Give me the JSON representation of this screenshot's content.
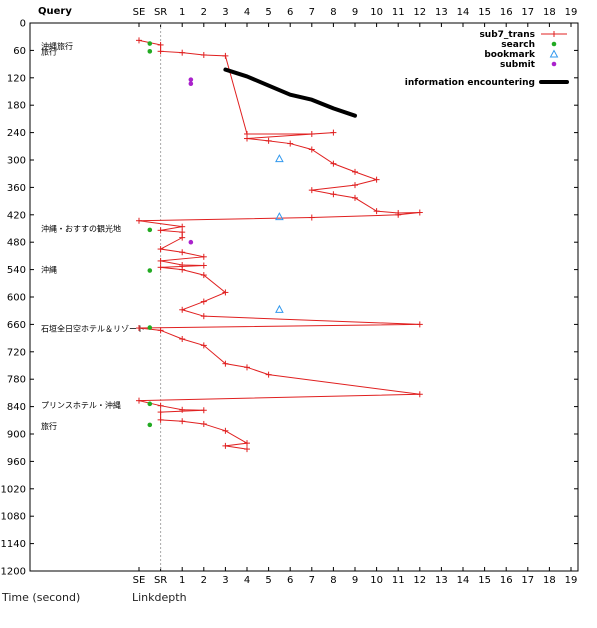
{
  "chart_data": {
    "type": "line",
    "title": "",
    "corner_label": "Query",
    "xlabel": "Linkdepth",
    "ylabel": "Time (second)",
    "x_ticks": [
      "SE",
      "SR",
      "1",
      "2",
      "3",
      "4",
      "5",
      "6",
      "7",
      "8",
      "9",
      "10",
      "11",
      "12",
      "13",
      "14",
      "15",
      "16",
      "17",
      "18",
      "19"
    ],
    "x_tick_values": [
      -1,
      0,
      1,
      2,
      3,
      4,
      5,
      6,
      7,
      8,
      9,
      10,
      11,
      12,
      13,
      14,
      15,
      16,
      17,
      18,
      19
    ],
    "xlim": [
      -1,
      19
    ],
    "y_ticks": [
      0,
      60,
      120,
      180,
      240,
      300,
      360,
      420,
      480,
      540,
      600,
      660,
      720,
      780,
      840,
      900,
      960,
      1020,
      1080,
      1140,
      1200
    ],
    "ylim": [
      0,
      1200
    ],
    "y_inverted": true,
    "grid": false,
    "sr_reference_line": 0,
    "legend_position": "top-right",
    "query_labels": [
      {
        "y": 50,
        "text": "沖縄旅行"
      },
      {
        "y": 62,
        "text": "旅行"
      },
      {
        "y": 450,
        "text": "沖縄・おすすの観光地"
      },
      {
        "y": 540,
        "text": "沖縄"
      },
      {
        "y": 669,
        "text": "石垣全日空ホテル＆リゾート"
      },
      {
        "y": 836,
        "text": "プリンスホテル・沖縄"
      },
      {
        "y": 882,
        "text": "旅行"
      }
    ],
    "series": [
      {
        "name": "sub7_trans",
        "style": "line-plus",
        "color": "#e02020",
        "points": [
          [
            -1,
            38
          ],
          [
            0,
            48
          ],
          [
            0,
            62
          ],
          [
            1,
            65
          ],
          [
            2,
            70
          ],
          [
            3,
            72
          ],
          [
            4,
            243
          ],
          [
            7,
            243
          ],
          [
            8,
            240
          ],
          [
            4,
            253
          ],
          [
            5,
            258
          ],
          [
            6,
            264
          ],
          [
            7,
            277
          ],
          [
            8,
            308
          ],
          [
            9,
            326
          ],
          [
            10,
            343
          ],
          [
            9,
            355
          ],
          [
            7,
            366
          ],
          [
            8,
            375
          ],
          [
            9,
            383
          ],
          [
            10,
            412
          ],
          [
            11,
            416
          ],
          [
            12,
            415
          ],
          [
            11,
            420
          ],
          [
            7,
            426
          ],
          [
            -1,
            433
          ],
          [
            1,
            446
          ],
          [
            0,
            454
          ],
          [
            1,
            458
          ],
          [
            1,
            470
          ],
          [
            0,
            495
          ],
          [
            1,
            502
          ],
          [
            2,
            512
          ],
          [
            0,
            521
          ],
          [
            1,
            530
          ],
          [
            2,
            531
          ],
          [
            0,
            535
          ],
          [
            1,
            540
          ],
          [
            2,
            552
          ],
          [
            3,
            590
          ],
          [
            2,
            610
          ],
          [
            1,
            628
          ],
          [
            2,
            642
          ],
          [
            12,
            660
          ],
          [
            -1,
            668
          ],
          [
            0,
            673
          ],
          [
            1,
            692
          ],
          [
            2,
            706
          ],
          [
            3,
            746
          ],
          [
            4,
            754
          ],
          [
            5,
            770
          ],
          [
            12,
            813
          ],
          [
            -1,
            827
          ],
          [
            0,
            838
          ],
          [
            1,
            847
          ],
          [
            2,
            848
          ],
          [
            0,
            852
          ],
          [
            0,
            869
          ],
          [
            1,
            872
          ],
          [
            2,
            878
          ],
          [
            3,
            893
          ],
          [
            4,
            920
          ],
          [
            3,
            926
          ],
          [
            4,
            933
          ]
        ]
      },
      {
        "name": "search",
        "style": "dot",
        "color": "#22aa22",
        "points": [
          [
            -0.5,
            45
          ],
          [
            -0.5,
            62
          ],
          [
            -0.5,
            453
          ],
          [
            -0.5,
            542
          ],
          [
            -0.5,
            667
          ],
          [
            -0.5,
            834
          ],
          [
            -0.5,
            880
          ]
        ]
      },
      {
        "name": "bookmark",
        "style": "triangle",
        "color": "#3399ee",
        "points": [
          [
            5.5,
            297
          ],
          [
            5.5,
            424
          ],
          [
            5.5,
            627
          ]
        ]
      },
      {
        "name": "submit",
        "style": "dot",
        "color": "#aa22cc",
        "points": [
          [
            1.4,
            124
          ],
          [
            1.4,
            133
          ],
          [
            1.4,
            480
          ]
        ]
      },
      {
        "name": "information encountering",
        "style": "thick-line",
        "color": "#000000",
        "points": [
          [
            3,
            102
          ],
          [
            4,
            117
          ],
          [
            5,
            137
          ],
          [
            6,
            157
          ],
          [
            7,
            168
          ],
          [
            8,
            187
          ],
          [
            9,
            203
          ]
        ]
      }
    ]
  },
  "footer": {
    "left": "Time (second)",
    "right": "Linkdepth"
  }
}
